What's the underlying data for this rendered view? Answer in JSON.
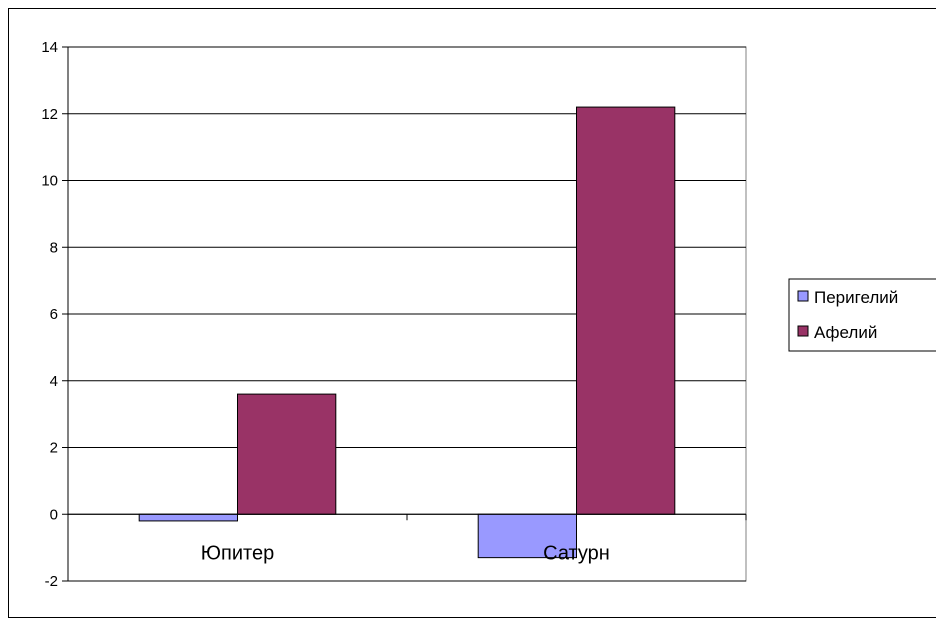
{
  "chart_data": {
    "type": "bar",
    "categories": [
      "Юпитер",
      "Сатурн"
    ],
    "series": [
      {
        "name": "Перигелий",
        "values": [
          -0.2,
          -1.3
        ],
        "color": "#9999ff"
      },
      {
        "name": "Афелий",
        "values": [
          3.6,
          12.2
        ],
        "color": "#993366"
      }
    ],
    "ylim": [
      -2,
      14
    ],
    "yticks": [
      -2,
      0,
      2,
      4,
      6,
      8,
      10,
      12,
      14
    ],
    "ytick_labels": [
      "-2",
      "0",
      "2",
      "4",
      "6",
      "8",
      "10",
      "12",
      "14"
    ],
    "grid": true,
    "legend_position": "right",
    "title": "",
    "xlabel": "",
    "ylabel": ""
  }
}
